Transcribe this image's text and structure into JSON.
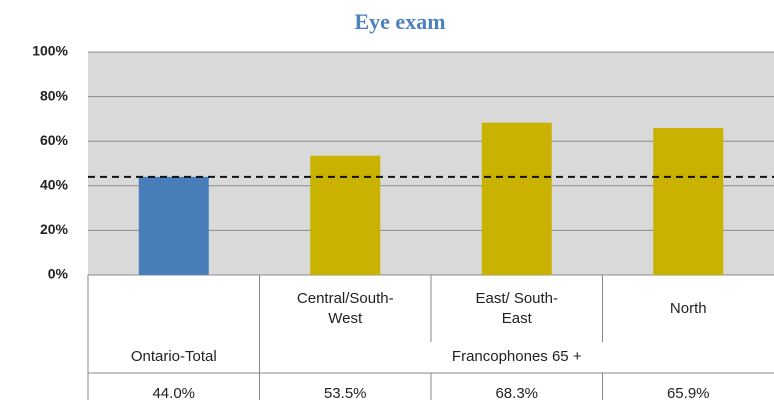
{
  "chart_data": {
    "type": "bar",
    "title": "Eye exam",
    "categories": [
      "Ontario-Total",
      "Central/South-West",
      "East/ South-East",
      "North"
    ],
    "group_label": "Francophones 65 +",
    "values": [
      44.0,
      53.5,
      68.3,
      65.9
    ],
    "value_labels": [
      "44.0%",
      "53.5%",
      "68.3%",
      "65.9%"
    ],
    "colors": [
      "#4a7ebb",
      "#c9b300",
      "#c9b300",
      "#c9b300"
    ],
    "ylim": [
      0,
      100
    ],
    "yticks": [
      {
        "value": 0,
        "label": "0%"
      },
      {
        "value": 20,
        "label": "20%"
      },
      {
        "value": 40,
        "label": "40%"
      },
      {
        "value": 60,
        "label": "60%"
      },
      {
        "value": 80,
        "label": "80%"
      },
      {
        "value": 100,
        "label": "100%"
      }
    ],
    "grid": true
  }
}
